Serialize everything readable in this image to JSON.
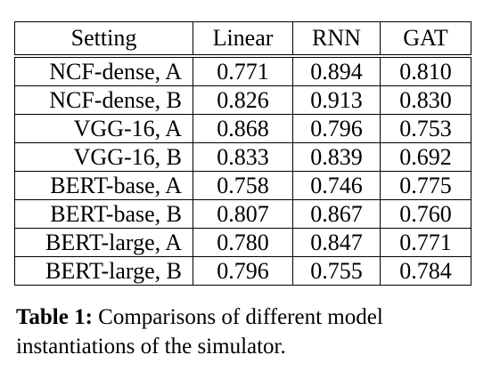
{
  "table": {
    "headers": [
      "Setting",
      "Linear",
      "RNN",
      "GAT"
    ],
    "rows": [
      {
        "setting": "NCF-dense, A",
        "values": [
          "0.771",
          "0.894",
          "0.810"
        ],
        "bold": 1
      },
      {
        "setting": "NCF-dense, B",
        "values": [
          "0.826",
          "0.913",
          "0.830"
        ],
        "bold": 1
      },
      {
        "setting": "VGG-16, A",
        "values": [
          "0.868",
          "0.796",
          "0.753"
        ],
        "bold": 0
      },
      {
        "setting": "VGG-16, B",
        "values": [
          "0.833",
          "0.839",
          "0.692"
        ],
        "bold": 1
      },
      {
        "setting": "BERT-base, A",
        "values": [
          "0.758",
          "0.746",
          "0.775"
        ],
        "bold": 2
      },
      {
        "setting": "BERT-base, B",
        "values": [
          "0.807",
          "0.867",
          "0.760"
        ],
        "bold": 1
      },
      {
        "setting": "BERT-large, A",
        "values": [
          "0.780",
          "0.847",
          "0.771"
        ],
        "bold": 1
      },
      {
        "setting": "BERT-large, B",
        "values": [
          "0.796",
          "0.755",
          "0.784"
        ],
        "bold": 0
      }
    ]
  },
  "caption": {
    "label": "Table 1:",
    "text": "Comparisons of different model instantiations of the simulator."
  }
}
